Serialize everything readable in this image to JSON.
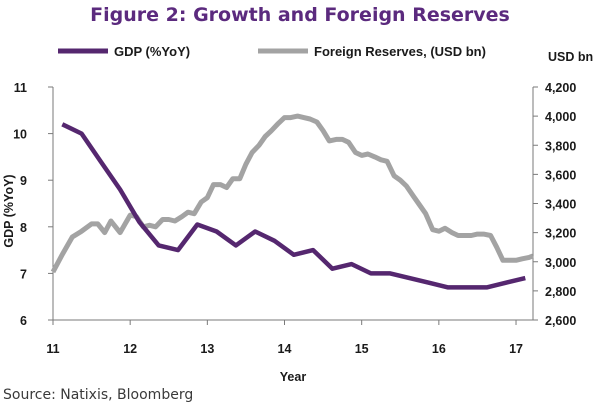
{
  "chart_data": {
    "type": "line",
    "title": "Figure 2: Growth and Foreign Reserves",
    "xlabel": "Year",
    "ylabel": "GDP (%YoY)",
    "y2label": "USD bn",
    "source": "Source: Natixis, Bloomberg",
    "x_ticks": [
      11,
      12,
      13,
      14,
      15,
      16,
      17
    ],
    "x_tick_labels": [
      "11",
      "12",
      "13",
      "14",
      "15",
      "16",
      "17"
    ],
    "xlim": [
      11,
      17.22
    ],
    "ylim": [
      6,
      11
    ],
    "y_ticks": [
      6,
      7,
      8,
      9,
      10,
      11
    ],
    "y_tick_labels": [
      "6",
      "7",
      "8",
      "9",
      "10",
      "11"
    ],
    "y2lim": [
      2600,
      4200
    ],
    "y2_ticks": [
      2600,
      2800,
      3000,
      3200,
      3400,
      3600,
      3800,
      4000,
      4200
    ],
    "y2_tick_labels": [
      "2,600",
      "2,800",
      "3,000",
      "3,200",
      "3,400",
      "3,600",
      "3,800",
      "4,000",
      "4,200"
    ],
    "grid": false,
    "legend_position": "top",
    "series": [
      {
        "name": "GDP (%YoY)",
        "axis": "left",
        "color": "#55276f",
        "x": [
          11.12,
          11.37,
          11.62,
          11.87,
          12.12,
          12.37,
          12.62,
          12.87,
          13.12,
          13.37,
          13.62,
          13.87,
          14.12,
          14.37,
          14.62,
          14.87,
          15.12,
          15.37,
          15.62,
          15.87,
          16.12,
          16.37,
          16.62,
          16.87,
          17.12
        ],
        "values": [
          10.2,
          10.0,
          9.4,
          8.8,
          8.1,
          7.6,
          7.5,
          8.05,
          7.9,
          7.6,
          7.9,
          7.7,
          7.4,
          7.5,
          7.1,
          7.2,
          7.0,
          7.0,
          6.9,
          6.8,
          6.7,
          6.7,
          6.7,
          6.8,
          6.9
        ]
      },
      {
        "name": "Foreign Reserves, (USD bn)",
        "axis": "right",
        "color": "#a3a3a3",
        "x": [
          11.0,
          11.12,
          11.25,
          11.37,
          11.5,
          11.58,
          11.67,
          11.75,
          11.87,
          12.0,
          12.08,
          12.17,
          12.25,
          12.33,
          12.42,
          12.5,
          12.58,
          12.67,
          12.75,
          12.83,
          12.92,
          13.0,
          13.08,
          13.17,
          13.25,
          13.33,
          13.42,
          13.5,
          13.58,
          13.67,
          13.75,
          13.83,
          13.92,
          14.0,
          14.08,
          14.17,
          14.25,
          14.33,
          14.42,
          14.5,
          14.58,
          14.67,
          14.75,
          14.83,
          14.92,
          15.0,
          15.08,
          15.17,
          15.25,
          15.33,
          15.42,
          15.5,
          15.58,
          15.67,
          15.75,
          15.83,
          15.92,
          16.0,
          16.08,
          16.17,
          16.25,
          16.33,
          16.42,
          16.5,
          16.58,
          16.67,
          16.75,
          16.83,
          16.92,
          17.0,
          17.08,
          17.17,
          17.22
        ],
        "values": [
          2930,
          3050,
          3170,
          3210,
          3260,
          3260,
          3200,
          3280,
          3200,
          3320,
          3310,
          3240,
          3250,
          3240,
          3290,
          3290,
          3280,
          3310,
          3340,
          3330,
          3410,
          3440,
          3530,
          3530,
          3510,
          3570,
          3570,
          3670,
          3750,
          3800,
          3860,
          3900,
          3950,
          3990,
          3990,
          4000,
          3990,
          3980,
          3960,
          3900,
          3830,
          3840,
          3840,
          3820,
          3750,
          3730,
          3740,
          3720,
          3700,
          3690,
          3590,
          3560,
          3520,
          3450,
          3390,
          3330,
          3220,
          3210,
          3230,
          3200,
          3180,
          3180,
          3180,
          3190,
          3190,
          3180,
          3100,
          3010,
          3010,
          3010,
          3020,
          3030,
          3040
        ]
      }
    ]
  }
}
